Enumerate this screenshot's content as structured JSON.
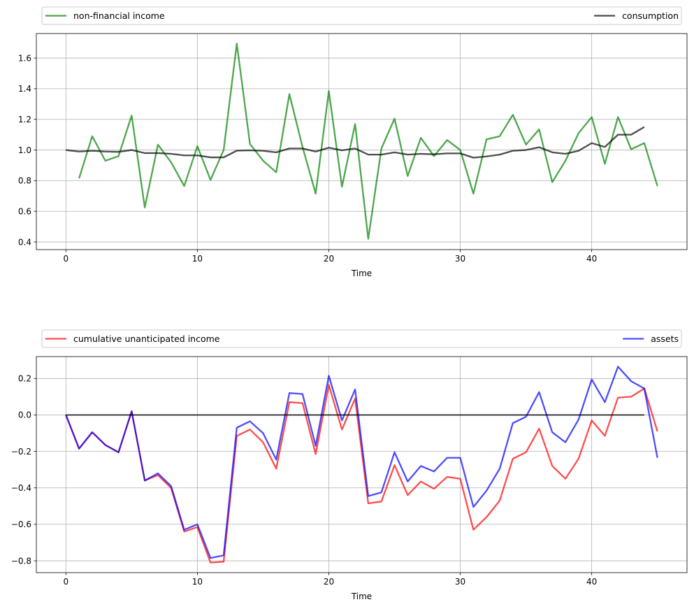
{
  "chart_data": [
    {
      "type": "line",
      "xlabel": "Time",
      "ylabel": "",
      "xlim": [
        -2.25,
        47.25
      ],
      "ylim": [
        0.35,
        1.76
      ],
      "xticks": [
        0,
        10,
        20,
        30,
        40
      ],
      "yticks": [
        0.4,
        0.6,
        0.8,
        1.0,
        1.2,
        1.4,
        1.6
      ],
      "ytick_labels": [
        "0.4",
        "0.6",
        "0.8",
        "1.0",
        "1.2",
        "1.4",
        "1.6"
      ],
      "grid": true,
      "legend_position": "above",
      "series": [
        {
          "name": "non-financial income",
          "color": "#008000",
          "x_start": 1,
          "values": [
            0.815,
            1.09,
            0.93,
            0.96,
            1.225,
            0.625,
            1.035,
            0.92,
            0.765,
            1.025,
            0.805,
            1.0,
            1.695,
            1.04,
            0.93,
            0.855,
            1.365,
            1.02,
            0.715,
            1.385,
            0.76,
            1.17,
            0.42,
            1.01,
            1.205,
            0.83,
            1.08,
            0.96,
            1.065,
            1.0,
            0.715,
            1.07,
            1.09,
            1.23,
            1.035,
            1.135,
            0.79,
            0.93,
            1.11,
            1.215,
            0.91,
            1.215,
            1.005,
            1.045,
            0.765
          ]
        },
        {
          "name": "consumption",
          "color": "#000000",
          "x_start": 0,
          "values": [
            1.0,
            0.99,
            0.995,
            0.99,
            0.988,
            1.0,
            0.98,
            0.98,
            0.975,
            0.965,
            0.965,
            0.952,
            0.952,
            0.996,
            0.998,
            0.995,
            0.985,
            1.01,
            1.01,
            0.99,
            1.015,
            0.998,
            1.01,
            0.97,
            0.97,
            0.985,
            0.97,
            0.975,
            0.972,
            0.978,
            0.978,
            0.95,
            0.958,
            0.97,
            0.995,
            1.0,
            1.018,
            0.985,
            0.975,
            0.995,
            1.045,
            1.02,
            1.1,
            1.1,
            1.15
          ]
        }
      ]
    },
    {
      "type": "line",
      "xlabel": "Time",
      "ylabel": "",
      "xlim": [
        -2.25,
        47.25
      ],
      "ylim": [
        -0.865,
        0.32
      ],
      "xticks": [
        0,
        10,
        20,
        30,
        40
      ],
      "yticks": [
        -0.8,
        -0.6,
        -0.4,
        -0.2,
        0.0,
        0.2
      ],
      "ytick_labels": [
        "−0.8",
        "−0.6",
        "−0.4",
        "−0.2",
        "0.0",
        "0.2"
      ],
      "grid": true,
      "legend_position": "above",
      "series": [
        {
          "name": "cumulative unanticipated income",
          "color": "#ff0000",
          "x_start": 0,
          "values": [
            0.0,
            -0.185,
            -0.095,
            -0.165,
            -0.205,
            0.02,
            -0.36,
            -0.33,
            -0.4,
            -0.64,
            -0.615,
            -0.81,
            -0.805,
            -0.115,
            -0.08,
            -0.15,
            -0.295,
            0.07,
            0.065,
            -0.215,
            0.165,
            -0.08,
            0.09,
            -0.485,
            -0.475,
            -0.275,
            -0.44,
            -0.365,
            -0.405,
            -0.34,
            -0.35,
            -0.63,
            -0.56,
            -0.47,
            -0.24,
            -0.205,
            -0.075,
            -0.28,
            -0.35,
            -0.24,
            -0.03,
            -0.115,
            0.095,
            0.1,
            0.145,
            -0.09
          ]
        },
        {
          "name": "assets",
          "color": "#0000ff",
          "x_start": 0,
          "values": [
            0.0,
            -0.185,
            -0.095,
            -0.165,
            -0.205,
            0.02,
            -0.36,
            -0.32,
            -0.39,
            -0.63,
            -0.6,
            -0.785,
            -0.77,
            -0.07,
            -0.035,
            -0.1,
            -0.245,
            0.12,
            0.115,
            -0.17,
            0.215,
            -0.03,
            0.14,
            -0.445,
            -0.425,
            -0.205,
            -0.365,
            -0.28,
            -0.31,
            -0.235,
            -0.235,
            -0.505,
            -0.415,
            -0.295,
            -0.045,
            -0.01,
            0.125,
            -0.095,
            -0.15,
            -0.025,
            0.195,
            0.07,
            0.265,
            0.185,
            0.145,
            -0.235
          ]
        },
        {
          "name": "zero line",
          "color": "#000000",
          "x_start": 0,
          "values": [
            0,
            0
          ]
        }
      ]
    }
  ]
}
